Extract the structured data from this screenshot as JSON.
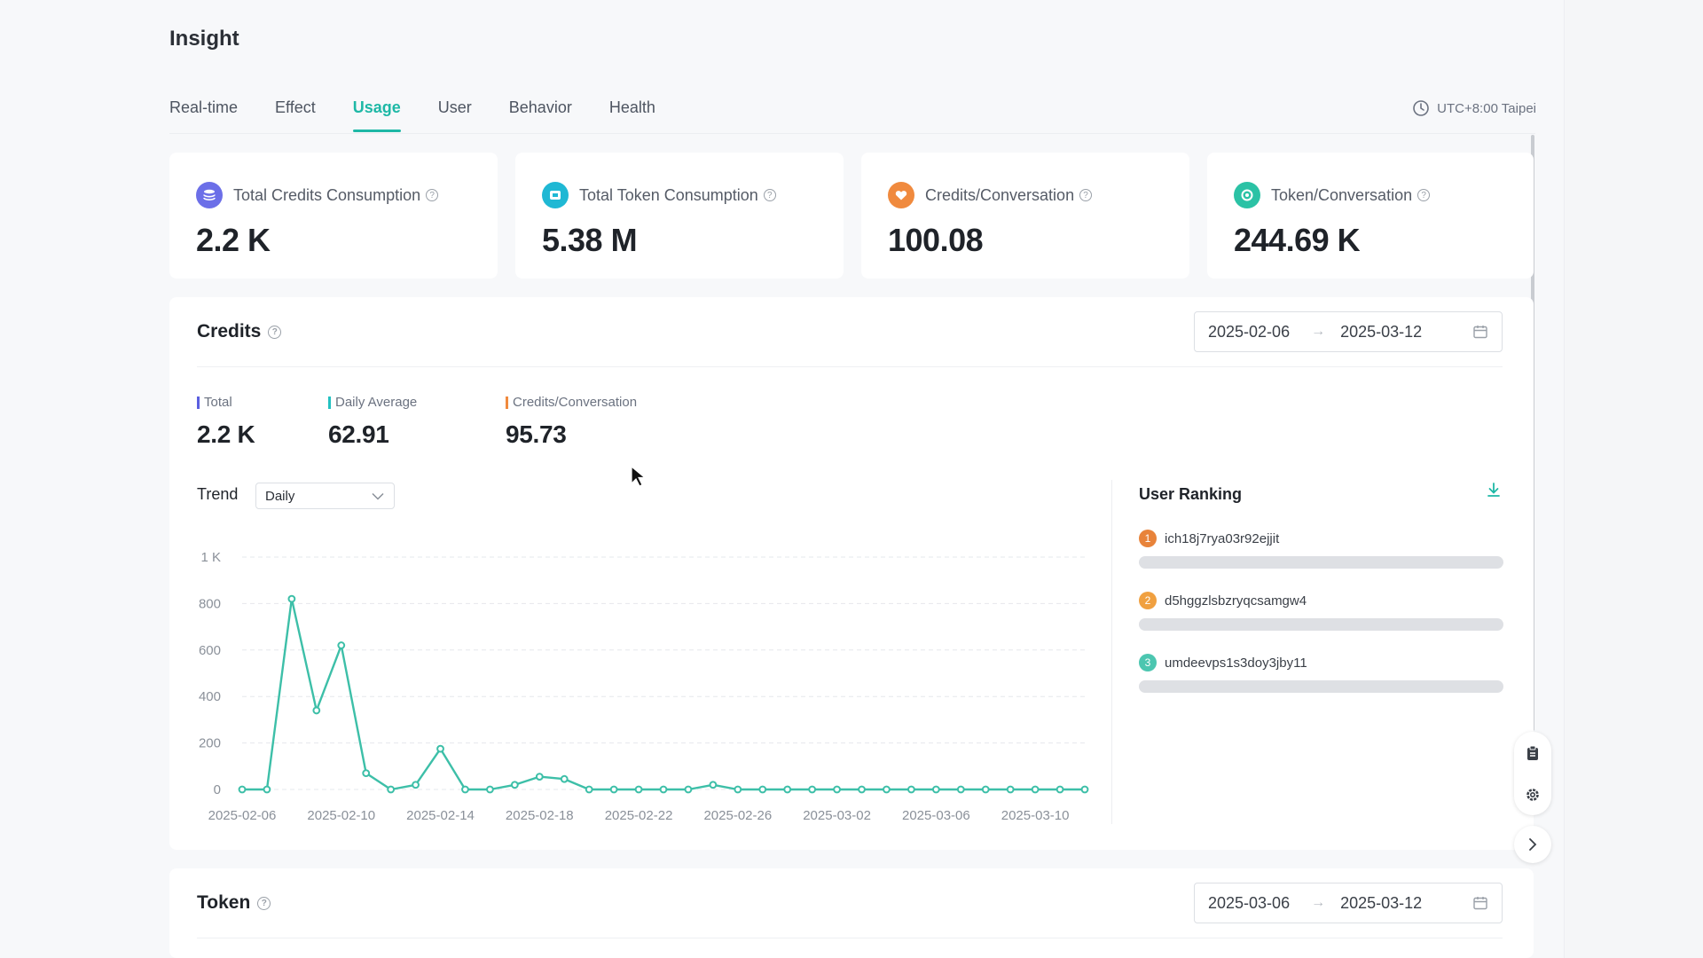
{
  "page": {
    "title": "Insight",
    "timezone": "UTC+8:00 Taipei"
  },
  "tabs": [
    {
      "label": "Real-time",
      "active": false
    },
    {
      "label": "Effect",
      "active": false
    },
    {
      "label": "Usage",
      "active": true
    },
    {
      "label": "User",
      "active": false
    },
    {
      "label": "Behavior",
      "active": false
    },
    {
      "label": "Health",
      "active": false
    }
  ],
  "kpis": [
    {
      "label": "Total Credits Consumption",
      "value": "2.2 K",
      "icon": "credits-stack-icon",
      "color": "#6c6fe8"
    },
    {
      "label": "Total Token Consumption",
      "value": "5.38 M",
      "icon": "token-icon",
      "color": "#1fb8d4"
    },
    {
      "label": "Credits/Conversation",
      "value": "100.08",
      "icon": "heart-icon",
      "color": "#f08a3e"
    },
    {
      "label": "Token/Conversation",
      "value": "244.69 K",
      "icon": "token-circle-icon",
      "color": "#2bc2a5"
    }
  ],
  "credits": {
    "title": "Credits",
    "range_start": "2025-02-06",
    "range_end": "2025-03-12",
    "stats": [
      {
        "label": "Total",
        "value": "2.2 K",
        "color": "#5b5fe0"
      },
      {
        "label": "Daily Average",
        "value": "62.91",
        "color": "#23c1c1"
      },
      {
        "label": "Credits/Conversation",
        "value": "95.73",
        "color": "#f08a3e"
      }
    ],
    "trend_label": "Trend",
    "granularity": "Daily"
  },
  "chart_data": {
    "type": "line",
    "title": "",
    "xlabel": "",
    "ylabel": "",
    "ylim": [
      0,
      1000
    ],
    "yticks": [
      "0",
      "200",
      "400",
      "600",
      "800",
      "1 K"
    ],
    "xtick_labels": [
      "2025-02-06",
      "2025-02-10",
      "2025-02-14",
      "2025-02-18",
      "2025-02-22",
      "2025-02-26",
      "2025-03-02",
      "2025-03-06",
      "2025-03-10"
    ],
    "x": [
      "2025-02-06",
      "2025-02-07",
      "2025-02-08",
      "2025-02-09",
      "2025-02-10",
      "2025-02-11",
      "2025-02-12",
      "2025-02-13",
      "2025-02-14",
      "2025-02-15",
      "2025-02-16",
      "2025-02-17",
      "2025-02-18",
      "2025-02-19",
      "2025-02-20",
      "2025-02-21",
      "2025-02-22",
      "2025-02-23",
      "2025-02-24",
      "2025-02-25",
      "2025-02-26",
      "2025-02-27",
      "2025-02-28",
      "2025-03-01",
      "2025-03-02",
      "2025-03-03",
      "2025-03-04",
      "2025-03-05",
      "2025-03-06",
      "2025-03-07",
      "2025-03-08",
      "2025-03-09",
      "2025-03-10",
      "2025-03-11",
      "2025-03-12"
    ],
    "series": [
      {
        "values": [
          0,
          0,
          820,
          340,
          620,
          70,
          0,
          20,
          175,
          0,
          0,
          20,
          55,
          45,
          0,
          0,
          0,
          0,
          0,
          20,
          0,
          0,
          0,
          0,
          0,
          0,
          0,
          0,
          0,
          0,
          0,
          0,
          0,
          0,
          0
        ]
      }
    ],
    "color": "#3dbfa8",
    "grid": true
  },
  "ranking": {
    "title": "User Ranking",
    "items": [
      {
        "rank": "1",
        "name": "ich18j7rya03r92ejjit",
        "color": "#e8833a"
      },
      {
        "rank": "2",
        "name": "d5hggzlsbzryqcsamgw4",
        "color": "#f0a040"
      },
      {
        "rank": "3",
        "name": "umdeevps1s3doy3jby11",
        "color": "#4cc6b0"
      }
    ]
  },
  "token": {
    "title": "Token",
    "range_start": "2025-03-06",
    "range_end": "2025-03-12"
  }
}
